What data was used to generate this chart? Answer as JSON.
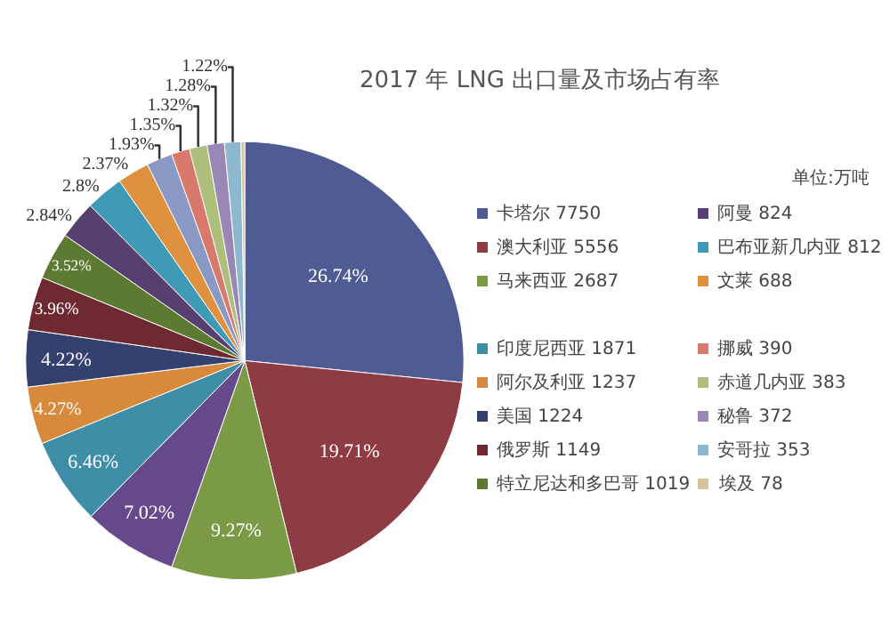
{
  "chart_data": {
    "type": "pie",
    "title": "2017 年 LNG 出口量及市场占有率",
    "annotations": [
      "单位:万吨"
    ],
    "categories": [
      "卡塔尔 7750",
      "澳大利亚 5556",
      "马来西亚 2687",
      null,
      "印度尼西亚 1871",
      "阿尔及利亚 1237",
      "美国 1224",
      "俄罗斯 1149",
      "特立尼达和多巴哥 1019",
      "阿曼 824",
      "巴布亚新几内亚 812",
      "文莱 688",
      null,
      "挪威 390",
      "赤道几内亚 383",
      "秘鲁 372",
      "安哥拉 353",
      "埃及 78"
    ],
    "values": [
      26.74,
      19.71,
      9.27,
      7.02,
      6.46,
      4.27,
      4.22,
      3.96,
      3.52,
      2.84,
      2.8,
      2.37,
      1.93,
      1.35,
      1.32,
      1.28,
      1.22,
      0.27
    ],
    "value_labels": [
      "26.74%",
      "19.71%",
      "9.27%",
      "7.02%",
      "6.46%",
      "4.27%",
      "4.22%",
      "3.96%",
      "3.52%",
      "2.84%",
      "2.8%",
      "2.37%",
      "1.93%",
      "1.35%",
      "1.32%",
      "1.28%",
      "1.22%",
      null
    ],
    "colors": [
      "#4f5b93",
      "#8e3b43",
      "#7a9a45",
      "#66498a",
      "#3f8ea8",
      "#d88a3c",
      "#34406e",
      "#6e2a30",
      "#5c7a32",
      "#57406f",
      "#3f9bb5",
      "#e0913f",
      "#8a98c4",
      "#d9796c",
      "#aebf7c",
      "#9b87b5",
      "#8cb8d0",
      "#d6c29c"
    ],
    "legend": "right"
  }
}
